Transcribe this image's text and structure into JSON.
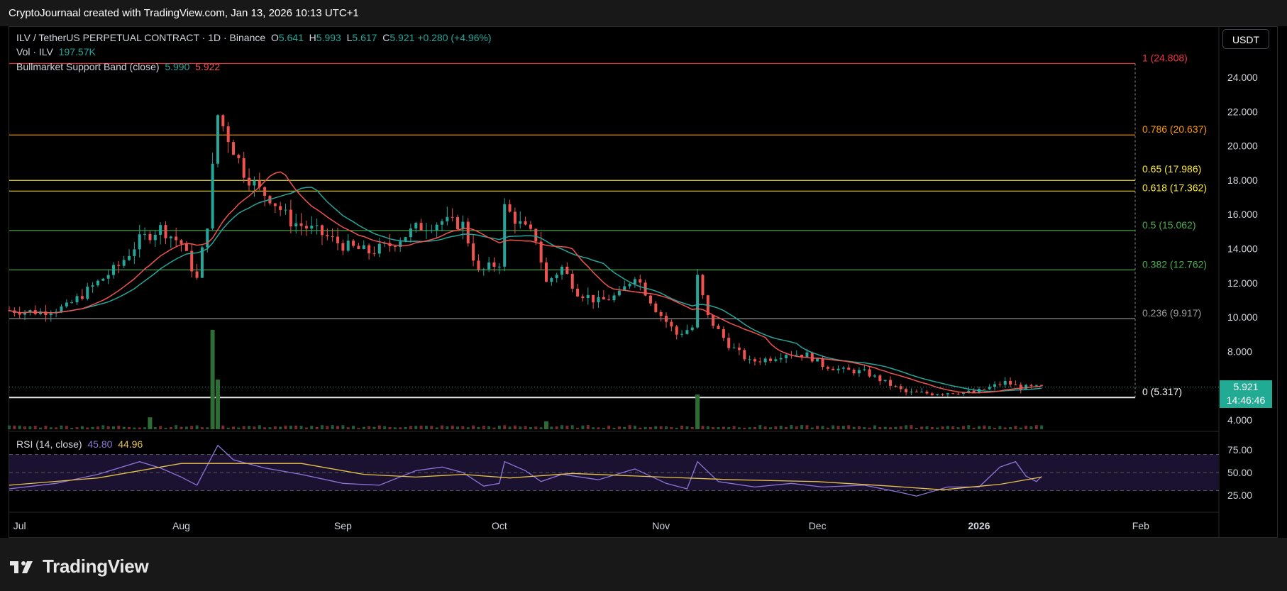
{
  "attribution": "CryptoJournaal created with TradingView.com, Jan 13, 2026 10:13 UTC+1",
  "brand": "TradingView",
  "currency_button": "USDT",
  "legend": {
    "symbol": "ILV / TetherUS PERPETUAL CONTRACT · 1D · Binance",
    "o_label": "O",
    "o": "5.641",
    "h_label": "H",
    "h": "5.993",
    "l_label": "L",
    "l": "5.617",
    "c_label": "C",
    "c": "5.921",
    "change": "+0.280 (+4.96%)",
    "vol_label": "Vol · ILV",
    "vol": "197.57K",
    "band_label": "Bullmarket Support Band (close)",
    "band_v1": "5.990",
    "band_v2": "5.922",
    "rsi_label": "RSI (14, close)",
    "rsi_v1": "45.80",
    "rsi_v2": "44.96"
  },
  "price_tag": {
    "price": "5.921",
    "countdown": "14:46:46"
  },
  "colors": {
    "up": "#26a69a",
    "down": "#ef5350",
    "rsi": "#8f75d8",
    "rsi_ma": "#e6c34a",
    "sma": "#26a69a",
    "ema": "#ef5350"
  },
  "chart_data": {
    "type": "candlestick",
    "price_axis": {
      "ticks": [
        "4.000",
        "8.000",
        "10.000",
        "12.000",
        "14.000",
        "16.000",
        "18.000",
        "20.000",
        "22.000",
        "24.000"
      ],
      "tick_values": [
        4,
        8,
        10,
        12,
        14,
        16,
        18,
        20,
        22,
        24
      ],
      "range": [
        3.2,
        26
      ]
    },
    "time_axis": {
      "labels": [
        "Jul",
        "Aug",
        "Sep",
        "Oct",
        "Nov",
        "Dec",
        "2026",
        "Feb"
      ],
      "start": "2025-06-29",
      "end": "2026-02-13"
    },
    "fibonacci": [
      {
        "label": "1 (24.808)",
        "value": 24.808,
        "color": "#f23645"
      },
      {
        "label": "0.786 (20.637)",
        "value": 20.637,
        "color": "#ff9800"
      },
      {
        "label": "0.65 (17.986)",
        "value": 17.986,
        "color": "#ffeb3b"
      },
      {
        "label": "0.618 (17.362)",
        "value": 17.362,
        "color": "#ffeb3b"
      },
      {
        "label": "0.5 (15.062)",
        "value": 15.062,
        "color": "#4caf50"
      },
      {
        "label": "0.382 (12.762)",
        "value": 12.762,
        "color": "#4caf50"
      },
      {
        "label": "0.236 (9.917)",
        "value": 9.917,
        "color": "#9e9e9e"
      },
      {
        "label": "0 (5.317)",
        "value": 5.317,
        "color": "#ffffff"
      }
    ],
    "price_series": [
      [
        "2025-06-29",
        10.4
      ],
      [
        "2025-07-05",
        10.3
      ],
      [
        "2025-07-10",
        10.6
      ],
      [
        "2025-07-15",
        11.8
      ],
      [
        "2025-07-20",
        13.0
      ],
      [
        "2025-07-24",
        14.5
      ],
      [
        "2025-07-28",
        15.2
      ],
      [
        "2025-08-01",
        14.3
      ],
      [
        "2025-08-04",
        12.2
      ],
      [
        "2025-08-06",
        15.5
      ],
      [
        "2025-08-08",
        21.8
      ],
      [
        "2025-08-10",
        20.5
      ],
      [
        "2025-08-13",
        18.5
      ],
      [
        "2025-08-16",
        17.4
      ],
      [
        "2025-08-18",
        17.0
      ],
      [
        "2025-08-22",
        15.6
      ],
      [
        "2025-08-27",
        15.0
      ],
      [
        "2025-09-01",
        14.2
      ],
      [
        "2025-09-06",
        13.8
      ],
      [
        "2025-09-10",
        14.2
      ],
      [
        "2025-09-15",
        15.2
      ],
      [
        "2025-09-20",
        15.6
      ],
      [
        "2025-09-24",
        15.4
      ],
      [
        "2025-09-27",
        12.6
      ],
      [
        "2025-10-01",
        13.2
      ],
      [
        "2025-10-02",
        16.4
      ],
      [
        "2025-10-05",
        15.4
      ],
      [
        "2025-10-08",
        14.6
      ],
      [
        "2025-10-10",
        12.0
      ],
      [
        "2025-10-13",
        12.9
      ],
      [
        "2025-10-16",
        11.5
      ],
      [
        "2025-10-20",
        10.9
      ],
      [
        "2025-10-24",
        11.3
      ],
      [
        "2025-10-27",
        12.5
      ],
      [
        "2025-10-31",
        10.5
      ],
      [
        "2025-11-04",
        9.0
      ],
      [
        "2025-11-07",
        9.4
      ],
      [
        "2025-11-08",
        12.3
      ],
      [
        "2025-11-10",
        10.0
      ],
      [
        "2025-11-14",
        8.4
      ],
      [
        "2025-11-18",
        7.4
      ],
      [
        "2025-11-22",
        7.6
      ],
      [
        "2025-11-25",
        7.9
      ],
      [
        "2025-11-29",
        7.8
      ],
      [
        "2025-12-02",
        7.2
      ],
      [
        "2025-12-06",
        6.9
      ],
      [
        "2025-12-10",
        6.8
      ],
      [
        "2025-12-14",
        6.2
      ],
      [
        "2025-12-18",
        5.6
      ],
      [
        "2025-12-23",
        5.55
      ],
      [
        "2025-12-28",
        5.65
      ],
      [
        "2025-12-31",
        5.6
      ],
      [
        "2026-01-03",
        5.9
      ],
      [
        "2026-01-06",
        6.2
      ],
      [
        "2026-01-09",
        5.9
      ],
      [
        "2026-01-13",
        5.92
      ]
    ],
    "rsi_axis": {
      "ticks": [
        "25.00",
        "50.00",
        "75.00"
      ],
      "tick_values": [
        25,
        50,
        75
      ],
      "range": [
        14,
        86
      ],
      "bands": [
        30,
        50,
        70
      ]
    },
    "rsi_series": [
      [
        "2025-06-29",
        32
      ],
      [
        "2025-07-08",
        38
      ],
      [
        "2025-07-16",
        48
      ],
      [
        "2025-07-24",
        62
      ],
      [
        "2025-07-28",
        55
      ],
      [
        "2025-08-01",
        45
      ],
      [
        "2025-08-04",
        36
      ],
      [
        "2025-08-08",
        80
      ],
      [
        "2025-08-11",
        64
      ],
      [
        "2025-08-17",
        55
      ],
      [
        "2025-08-24",
        48
      ],
      [
        "2025-09-01",
        38
      ],
      [
        "2025-09-08",
        36
      ],
      [
        "2025-09-15",
        52
      ],
      [
        "2025-09-20",
        56
      ],
      [
        "2025-09-24",
        50
      ],
      [
        "2025-09-28",
        35
      ],
      [
        "2025-10-01",
        38
      ],
      [
        "2025-10-02",
        62
      ],
      [
        "2025-10-06",
        52
      ],
      [
        "2025-10-09",
        40
      ],
      [
        "2025-10-13",
        48
      ],
      [
        "2025-10-20",
        42
      ],
      [
        "2025-10-27",
        54
      ],
      [
        "2025-11-02",
        38
      ],
      [
        "2025-11-06",
        32
      ],
      [
        "2025-11-08",
        62
      ],
      [
        "2025-11-12",
        40
      ],
      [
        "2025-11-19",
        34
      ],
      [
        "2025-11-26",
        38
      ],
      [
        "2025-12-02",
        34
      ],
      [
        "2025-12-10",
        36
      ],
      [
        "2025-12-17",
        28
      ],
      [
        "2025-12-20",
        24
      ],
      [
        "2025-12-26",
        34
      ],
      [
        "2026-01-01",
        34
      ],
      [
        "2026-01-05",
        56
      ],
      [
        "2026-01-08",
        62
      ],
      [
        "2026-01-10",
        46
      ],
      [
        "2026-01-12",
        40
      ],
      [
        "2026-01-13",
        45.8
      ]
    ],
    "rsi_ma_series": [
      [
        "2025-06-29",
        36
      ],
      [
        "2025-07-16",
        44
      ],
      [
        "2025-08-01",
        60
      ],
      [
        "2025-08-10",
        60
      ],
      [
        "2025-08-24",
        60
      ],
      [
        "2025-09-05",
        48
      ],
      [
        "2025-09-15",
        45
      ],
      [
        "2025-09-24",
        48
      ],
      [
        "2025-10-03",
        44
      ],
      [
        "2025-10-15",
        49
      ],
      [
        "2025-11-01",
        45
      ],
      [
        "2025-11-15",
        42
      ],
      [
        "2025-12-01",
        40
      ],
      [
        "2025-12-15",
        35
      ],
      [
        "2025-12-25",
        31
      ],
      [
        "2026-01-05",
        37
      ],
      [
        "2026-01-13",
        45
      ]
    ],
    "volume_spikes": [
      [
        "2025-08-07",
        1.0
      ],
      [
        "2025-08-08",
        0.5
      ],
      [
        "2025-11-08",
        0.35
      ],
      [
        "2025-07-26",
        0.12
      ],
      [
        "2025-10-10",
        0.08
      ]
    ]
  }
}
